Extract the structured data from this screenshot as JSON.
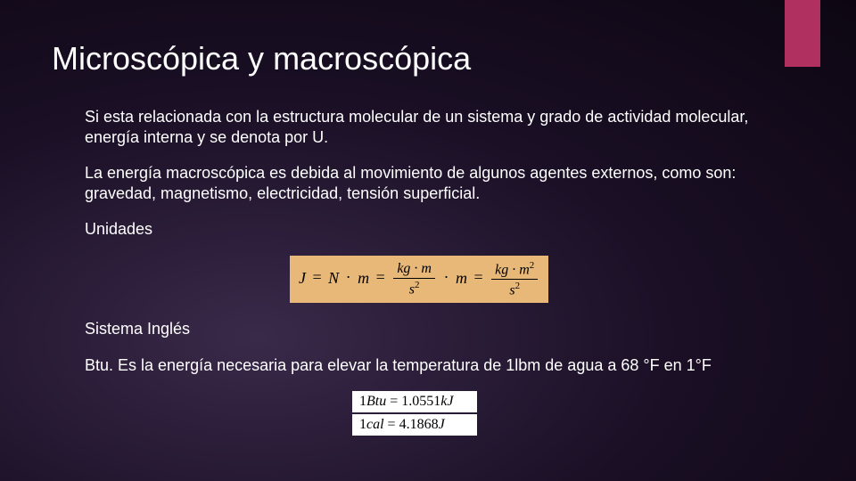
{
  "accent_color": "#b03060",
  "title": "Microscópica y macroscópica",
  "paragraphs": {
    "p1": "Si esta relacionada con la estructura molecular de un sistema  y grado de actividad molecular, energía interna y se denota por U.",
    "p2": "La energía macroscópica es debida al movimiento de algunos agentes externos, como son: gravedad, magnetismo, electricidad, tensión superficial.",
    "p3": "Unidades",
    "p4": "Sistema Inglés",
    "p5": "Btu. Es la energía necesaria para elevar la temperatura de 1lbm de agua a 68 °F en 1°F"
  },
  "formula_main": {
    "background": "#e8b878",
    "text_color": "#000000",
    "lhs": "J",
    "eq1_rhs": "N",
    "mul1": "m",
    "frac1_num": "kg · m",
    "frac1_den_base": "s",
    "frac1_den_exp": "2",
    "mul2": "m",
    "frac2_num_base": "kg · m",
    "frac2_num_exp": "2",
    "frac2_den_base": "s",
    "frac2_den_exp": "2"
  },
  "formula_conversions": {
    "background": "#ffffff",
    "text_color": "#000000",
    "line1_lhs": "1Btu",
    "line1_rhs": "1.0551kJ",
    "line2_lhs": "1cal",
    "line2_rhs": "4.1868J"
  }
}
